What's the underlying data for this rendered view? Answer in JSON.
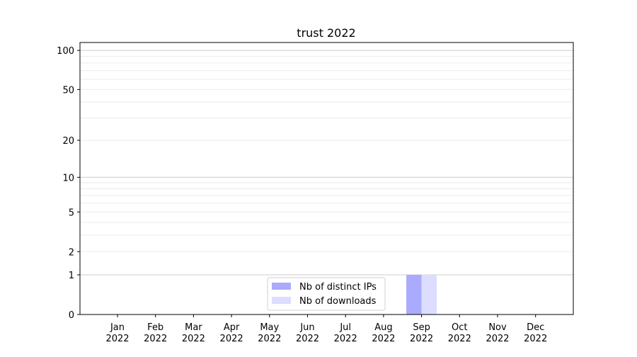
{
  "chart_data": {
    "type": "bar",
    "title": "trust 2022",
    "xlabel": "",
    "ylabel": "",
    "yscale": "log(1+x)",
    "ylim": [
      0,
      115
    ],
    "yticks": [
      0,
      1,
      2,
      5,
      10,
      20,
      50,
      100
    ],
    "grid": true,
    "legend_position": "bottom-center",
    "categories": [
      [
        "Jan",
        "2022"
      ],
      [
        "Feb",
        "2022"
      ],
      [
        "Mar",
        "2022"
      ],
      [
        "Apr",
        "2022"
      ],
      [
        "May",
        "2022"
      ],
      [
        "Jun",
        "2022"
      ],
      [
        "Jul",
        "2022"
      ],
      [
        "Aug",
        "2022"
      ],
      [
        "Sep",
        "2022"
      ],
      [
        "Oct",
        "2022"
      ],
      [
        "Nov",
        "2022"
      ],
      [
        "Dec",
        "2022"
      ]
    ],
    "series": [
      {
        "name": "Nb of distinct IPs",
        "color": "#aaaaff",
        "values": [
          0,
          0,
          0,
          0,
          0,
          0,
          0,
          0,
          1,
          0,
          0,
          0
        ]
      },
      {
        "name": "Nb of downloads",
        "color": "#ddddff",
        "values": [
          0,
          0,
          0,
          0,
          0,
          0,
          0,
          0,
          1,
          0,
          0,
          0
        ]
      }
    ]
  }
}
